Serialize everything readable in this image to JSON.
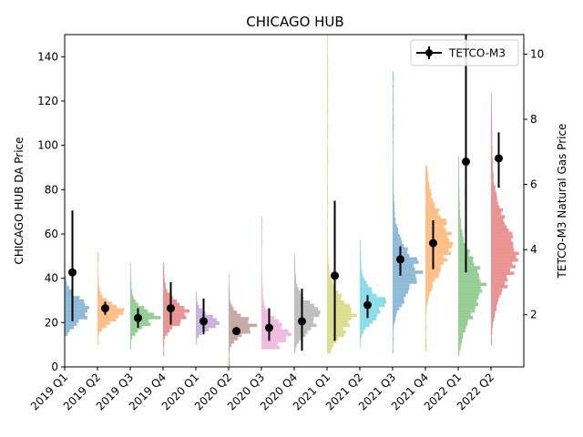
{
  "chart_data": {
    "type": "bar",
    "title": "CHICAGO HUB",
    "ylabel_left": "CHICAGO HUB DA Price",
    "ylabel_right": "TETCO-M3 Natural Gas Price",
    "ylim_left": [
      0,
      150
    ],
    "ylim_right": [
      0.4,
      10.6
    ],
    "yticks_left": [
      0,
      20,
      40,
      60,
      80,
      100,
      120,
      140
    ],
    "yticks_right": [
      2,
      4,
      6,
      8,
      10
    ],
    "legend": {
      "placement": "top-right",
      "entries": [
        "TETCO-M3"
      ]
    },
    "categories": [
      "2019 Q1",
      "2019 Q2",
      "2019 Q3",
      "2019 Q4",
      "2020 Q1",
      "2020 Q2",
      "2020 Q3",
      "2020 Q4",
      "2021 Q1",
      "2021 Q2",
      "2021 Q3",
      "2021 Q4",
      "2022 Q1",
      "2022 Q2"
    ],
    "hist_colors": [
      "#1f77b4",
      "#ff7f0e",
      "#2ca02c",
      "#d62728",
      "#9467bd",
      "#8c564b",
      "#e377c2",
      "#7f7f7f",
      "#bcbd22",
      "#17becf",
      "#1f77b4",
      "#ff7f0e",
      "#2ca02c",
      "#d62728"
    ],
    "distributions": [
      {
        "min": 14,
        "max": 40,
        "mode": 25,
        "spread": 5
      },
      {
        "min": 10,
        "max": 52,
        "mode": 24,
        "spread": 4
      },
      {
        "min": 8,
        "max": 47,
        "mode": 22,
        "spread": 4
      },
      {
        "min": 5,
        "max": 46,
        "mode": 24,
        "spread": 5
      },
      {
        "min": 10,
        "max": 33,
        "mode": 20,
        "spread": 3
      },
      {
        "min": 0,
        "max": 42,
        "mode": 18,
        "spread": 4
      },
      {
        "min": 8,
        "max": 67,
        "mode": 14,
        "spread": 6
      },
      {
        "min": 6,
        "max": 51,
        "mode": 22,
        "spread": 6
      },
      {
        "min": 6,
        "max": 149,
        "mode": 22,
        "spread": 8
      },
      {
        "min": 9,
        "max": 56,
        "mode": 27,
        "spread": 6
      },
      {
        "min": 6,
        "max": 133,
        "mode": 42,
        "spread": 10
      },
      {
        "min": 7,
        "max": 90,
        "mode": 55,
        "spread": 12
      },
      {
        "min": 5,
        "max": 95,
        "mode": 35,
        "spread": 12
      },
      {
        "min": 10,
        "max": 124,
        "mode": 50,
        "spread": 14
      }
    ],
    "series": [
      {
        "name": "TETCO-M3",
        "mean": [
          3.3,
          2.2,
          1.9,
          2.2,
          1.8,
          1.5,
          1.6,
          1.8,
          3.2,
          2.3,
          3.7,
          4.2,
          6.7,
          6.8
        ],
        "err_low": [
          1.8,
          2.0,
          1.6,
          1.7,
          1.4,
          1.5,
          1.2,
          0.9,
          1.2,
          1.9,
          3.2,
          3.4,
          3.3,
          5.9
        ],
        "err_high": [
          5.2,
          2.4,
          2.2,
          3.0,
          2.5,
          1.6,
          2.2,
          2.8,
          5.5,
          2.6,
          4.1,
          4.9,
          10.6,
          7.6
        ]
      }
    ]
  }
}
